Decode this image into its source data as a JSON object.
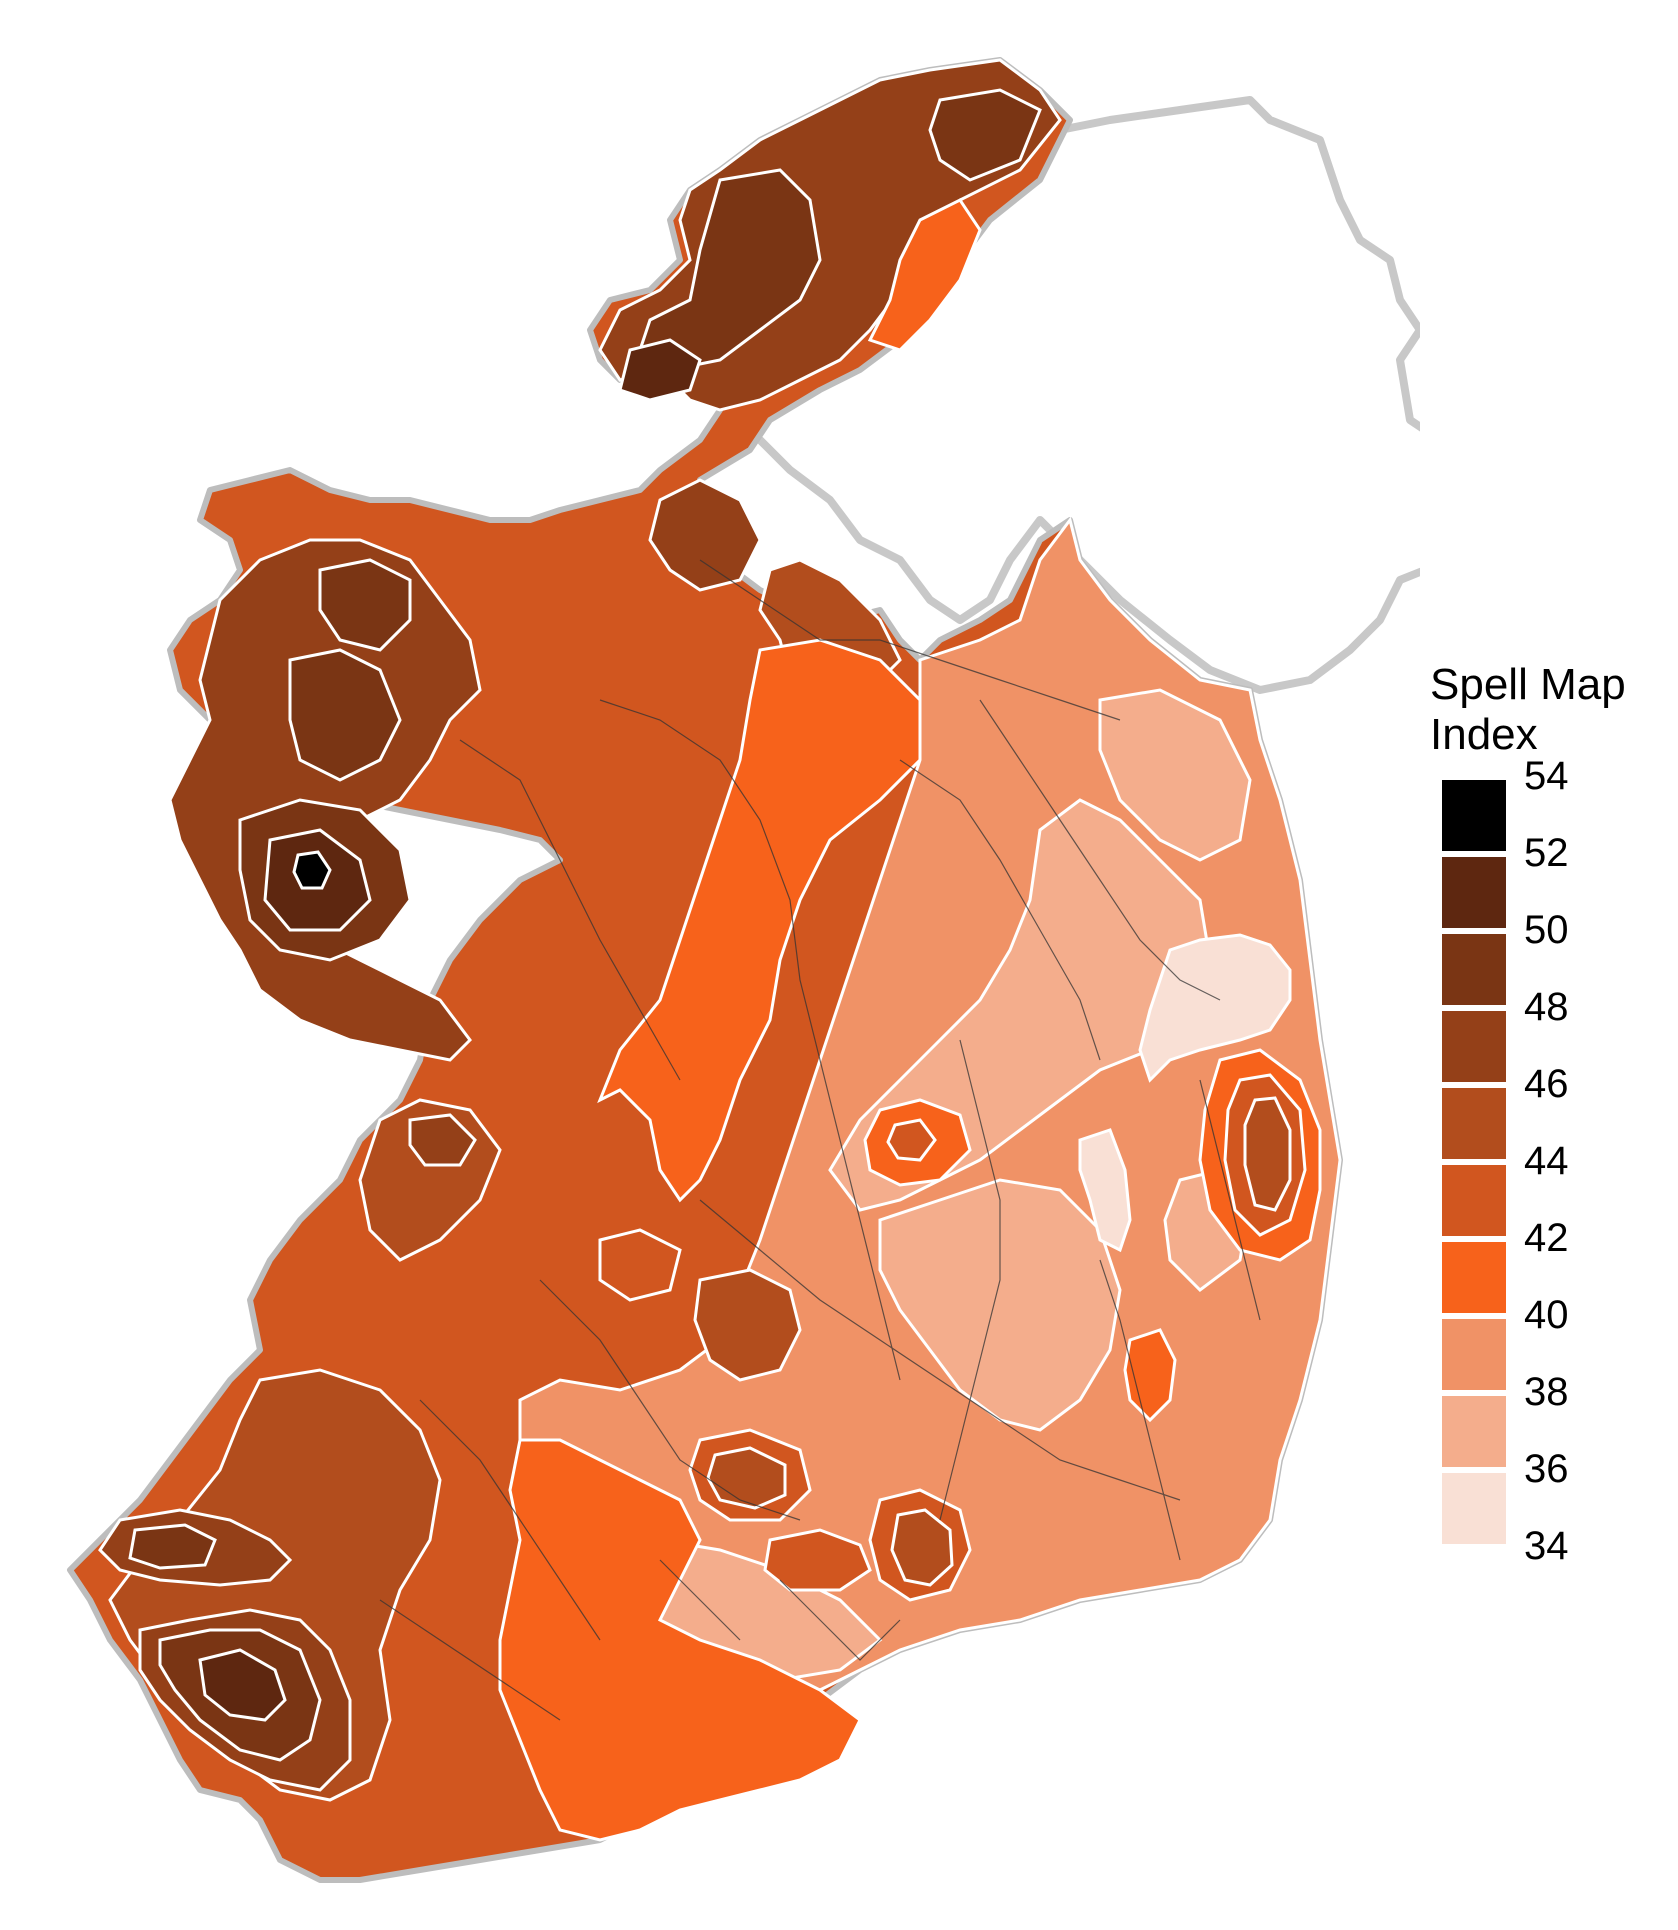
{
  "legend": {
    "title_line1": "Spell Map",
    "title_line2": "Index",
    "ticks": [
      "54",
      "52",
      "50",
      "48",
      "46",
      "44",
      "42",
      "40",
      "38",
      "36",
      "34"
    ],
    "bins": [
      {
        "range": "52-54",
        "color": "#000000"
      },
      {
        "range": "50-52",
        "color": "#5e2710"
      },
      {
        "range": "48-50",
        "color": "#7a3514"
      },
      {
        "range": "46-48",
        "color": "#944018"
      },
      {
        "range": "44-46",
        "color": "#b24d1d"
      },
      {
        "range": "42-44",
        "color": "#d1561f"
      },
      {
        "range": "40-42",
        "color": "#f7621b"
      },
      {
        "range": "38-40",
        "color": "#f09266"
      },
      {
        "range": "36-38",
        "color": "#f4ad8c"
      },
      {
        "range": "34-36",
        "color": "#f9e0d5"
      }
    ]
  },
  "map": {
    "northern_outline_color": "#c8c8c8",
    "contour_color": "#ffffff",
    "boundary_color": "#333333"
  }
}
